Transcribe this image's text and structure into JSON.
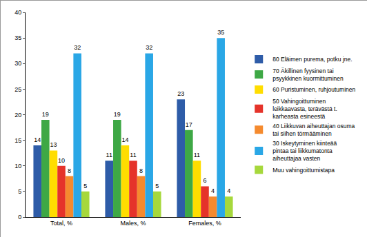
{
  "chart_data": {
    "type": "bar",
    "categories": [
      "Total, %",
      "Males, %",
      "Females, %"
    ],
    "series": [
      {
        "name": "80 Eläimen purema, potku jne.",
        "color": "#2e5ca8",
        "values": [
          14,
          11,
          23
        ]
      },
      {
        "name": "70 Äkillinen fyysinen tai psyykkinen kuormittuminen",
        "color": "#3ea845",
        "values": [
          19,
          19,
          17
        ]
      },
      {
        "name": "60 Puristuminen, ruhjoutuminen",
        "color": "#ffdd00",
        "values": [
          13,
          14,
          11
        ]
      },
      {
        "name": "50 Vahingoittuminen leikkaavasta, terävästä t. karheasta esineestä",
        "color": "#e5332a",
        "values": [
          10,
          11,
          6
        ]
      },
      {
        "name": "40 Liikkuvan aiheuttajan osuma tai siihen törmääminen",
        "color": "#f58a2e",
        "values": [
          8,
          8,
          4
        ]
      },
      {
        "name": "30 Iskeytyminen kiinteää pintaa tai liikkumatonta aiheuttajaa vasten",
        "color": "#2aa7e6",
        "values": [
          32,
          32,
          35
        ]
      },
      {
        "name": "Muu vahingoittumistapa",
        "color": "#a6d83c",
        "values": [
          5,
          5,
          4
        ]
      }
    ],
    "ylim": [
      0,
      40
    ],
    "yticks": [
      0,
      5,
      10,
      15,
      20,
      25,
      30,
      35,
      40
    ],
    "grid": false,
    "data_labels": true,
    "legend": "right"
  }
}
